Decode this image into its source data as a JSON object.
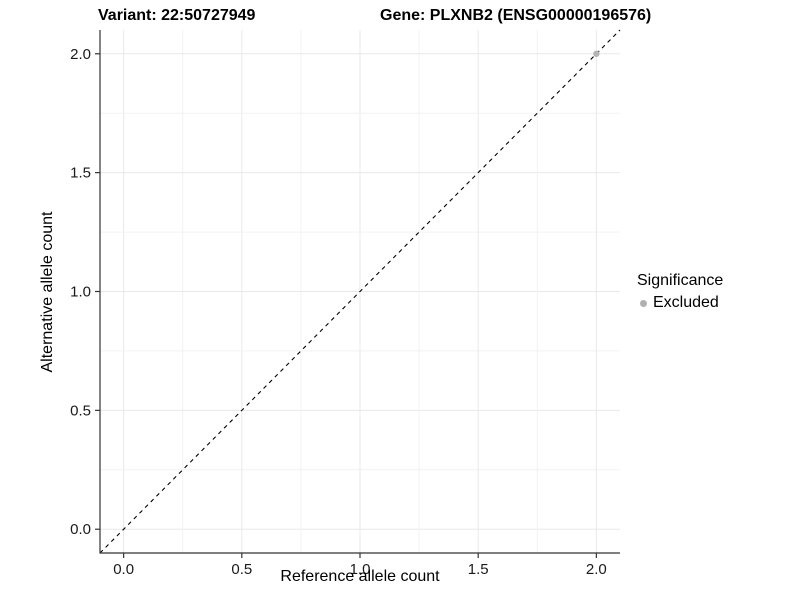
{
  "header": {
    "variant_title": "Variant: 22:50727949",
    "gene_title": "Gene: PLXNB2 (ENSG00000196576)"
  },
  "chart_data": {
    "type": "scatter",
    "xlabel": "Reference allele count",
    "ylabel": "Alternative allele count",
    "xlim": [
      -0.1,
      2.1
    ],
    "ylim": [
      -0.1,
      2.1
    ],
    "x_ticks": [
      0.0,
      0.5,
      1.0,
      1.5,
      2.0
    ],
    "y_ticks": [
      0.0,
      0.5,
      1.0,
      1.5,
      2.0
    ],
    "minor_grid_step": 0.25,
    "grid": true,
    "legend_position": "right",
    "points": [
      {
        "x": 2.0,
        "y": 2.0,
        "series": "Excluded"
      }
    ],
    "series": [
      {
        "name": "Excluded",
        "color": "#b5b5b5"
      }
    ],
    "reference_line": {
      "slope": 1,
      "intercept": 0,
      "linestyle": "dashed",
      "color": "#000000"
    }
  },
  "legend": {
    "title": "Significance",
    "items": [
      {
        "label": "Excluded",
        "color": "#b0b0b0"
      }
    ]
  },
  "colors": {
    "grid_major": "#e8e8e8",
    "grid_minor": "#f2f2f2",
    "axis_line": "#333333",
    "tick_text": "#1a1a1a",
    "tick_mark": "#333333"
  }
}
